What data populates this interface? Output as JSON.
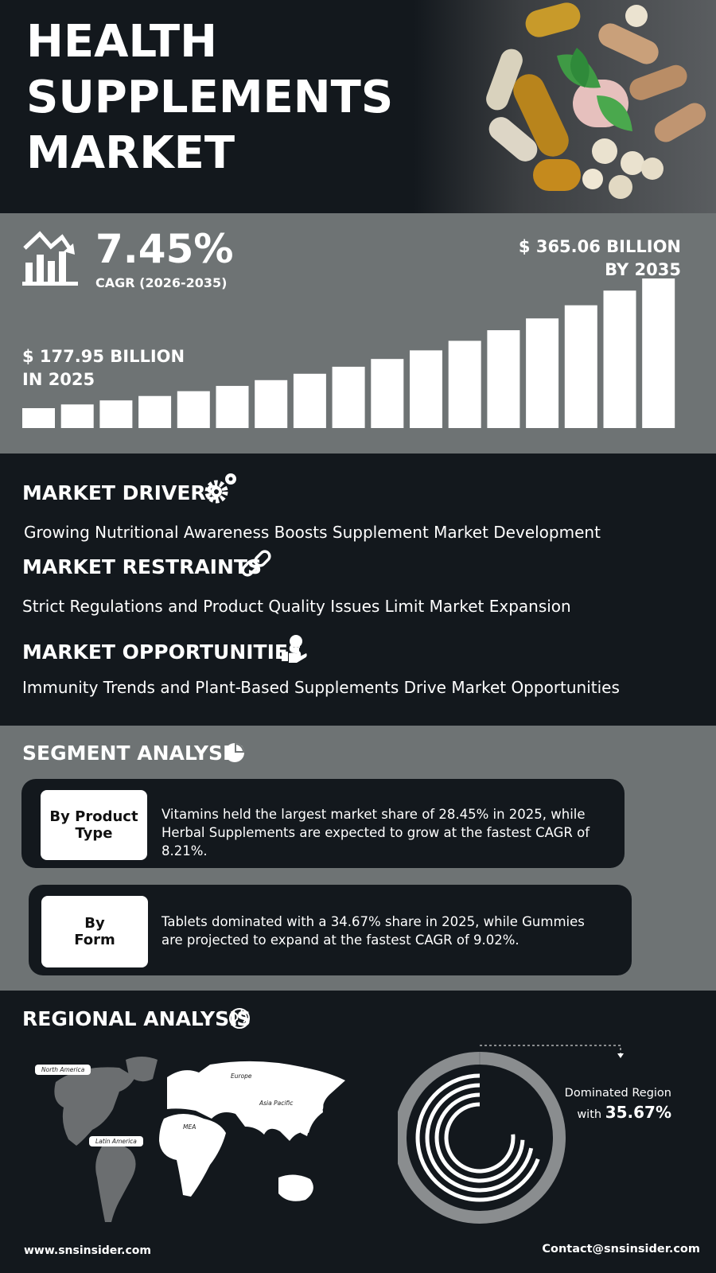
{
  "header": {
    "title_lines": [
      "HEALTH",
      "SUPPLEMENTS",
      "MARKET"
    ]
  },
  "growth": {
    "cagr_value": "7.45%",
    "cagr_label": "CAGR (2026-2035)",
    "end_value": "$ 365.06 BILLION",
    "end_year": "BY 2035",
    "start_value": "$ 177.95 BILLION",
    "start_year": "IN 2025"
  },
  "dynamics": [
    {
      "heading": "MARKET DRIVERS",
      "text": "Growing Nutritional Awareness Boosts Supplement Market Development"
    },
    {
      "heading": "MARKET RESTRAINTS",
      "text": "Strict Regulations and Product Quality Issues Limit Market Expansion"
    },
    {
      "heading": "MARKET OPPORTUNITIES",
      "text": "Immunity Trends and Plant-Based Supplements Drive Market Opportunities"
    }
  ],
  "segments": {
    "heading": "SEGMENT ANALYSIS",
    "items": [
      {
        "label_lines": [
          "By Product",
          "Type"
        ],
        "text": "Vitamins held the largest market share of 28.45% in 2025, while Herbal Supplements are expected to grow at the fastest CAGR of 8.21%."
      },
      {
        "label_lines": [
          "By",
          "Form"
        ],
        "text": "Tablets dominated with a 34.67% share in 2025, while Gummies are projected to expand at the fastest CAGR of 9.02%."
      }
    ]
  },
  "regional": {
    "heading": "REGIONAL ANALYSIS",
    "map_labels": [
      "North America",
      "Europe",
      "Asia Pacific",
      "MEA",
      "Latin America"
    ],
    "dominated_label": "Dominated Region",
    "dominated_with": "with",
    "dominated_value": "35.67%"
  },
  "footer": {
    "website": "www.snsinsider.com",
    "contact": "Contact@snsinsider.com"
  }
}
